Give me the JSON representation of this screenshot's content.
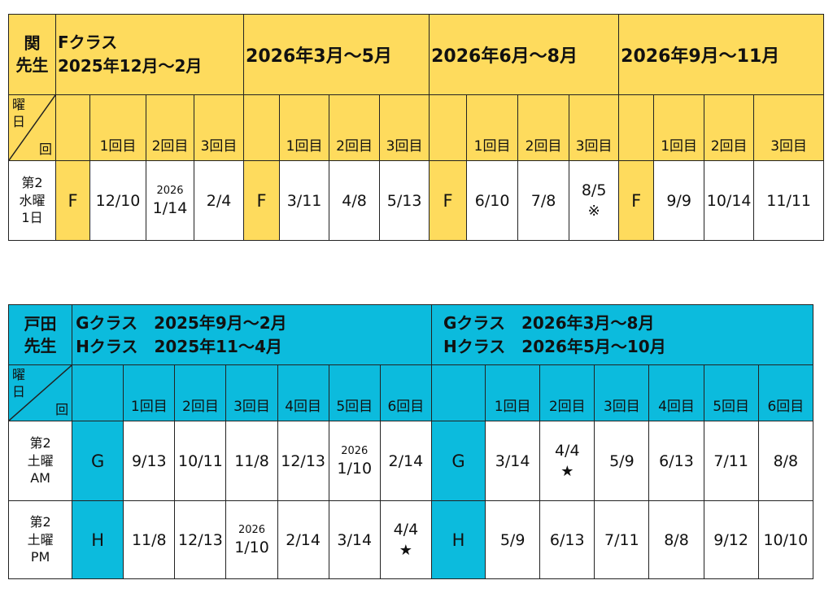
{
  "colors": {
    "table1_accent": "#fedb5d",
    "table2_accent": "#0cbbdd",
    "cell": "#ffffff"
  },
  "table1": {
    "teacher": [
      "関",
      "先生"
    ],
    "class_title": [
      "Fクラス",
      "2025年12月～2月"
    ],
    "periods": [
      "2026年3月～5月",
      "2026年6月～8月",
      "2026年9月～11月"
    ],
    "corner": {
      "top": [
        "曜",
        "日"
      ],
      "bottom": "回"
    },
    "sessions": [
      "1回目",
      "2回目",
      "3回目"
    ],
    "day": [
      "第2",
      "水曜",
      "1日"
    ],
    "class_code": "F",
    "blocks": [
      {
        "dates": [
          {
            "year": "",
            "date": "12/10",
            "mark": ""
          },
          {
            "year": "2026",
            "date": "1/14",
            "mark": ""
          },
          {
            "year": "",
            "date": "2/4",
            "mark": ""
          }
        ]
      },
      {
        "dates": [
          {
            "year": "",
            "date": "3/11",
            "mark": ""
          },
          {
            "year": "",
            "date": "4/8",
            "mark": ""
          },
          {
            "year": "",
            "date": "5/13",
            "mark": ""
          }
        ]
      },
      {
        "dates": [
          {
            "year": "",
            "date": "6/10",
            "mark": ""
          },
          {
            "year": "",
            "date": "7/8",
            "mark": ""
          },
          {
            "year": "",
            "date": "8/5",
            "mark": "※"
          }
        ]
      },
      {
        "dates": [
          {
            "year": "",
            "date": "9/9",
            "mark": ""
          },
          {
            "year": "",
            "date": "10/14",
            "mark": ""
          },
          {
            "year": "",
            "date": "11/11",
            "mark": ""
          }
        ]
      }
    ]
  },
  "table2": {
    "teacher": [
      "戸田",
      "先生"
    ],
    "left_title": [
      "Gクラス　2025年9月～2月",
      "Hクラス　2025年11～4月"
    ],
    "right_title": [
      "Gクラス　2026年3月～8月",
      "Hクラス　2026年5月～10月"
    ],
    "corner": {
      "top": [
        "曜",
        "日"
      ],
      "bottom": "回"
    },
    "sessions": [
      "1回目",
      "2回目",
      "3回目",
      "4回目",
      "5回目",
      "6回目"
    ],
    "rows": [
      {
        "day": [
          "第2",
          "土曜",
          "AM"
        ],
        "class_code": "G",
        "left": [
          {
            "year": "",
            "date": "9/13",
            "mark": ""
          },
          {
            "year": "",
            "date": "10/11",
            "mark": ""
          },
          {
            "year": "",
            "date": "11/8",
            "mark": ""
          },
          {
            "year": "",
            "date": "12/13",
            "mark": ""
          },
          {
            "year": "2026",
            "date": "1/10",
            "mark": ""
          },
          {
            "year": "",
            "date": "2/14",
            "mark": ""
          }
        ],
        "right": [
          {
            "year": "",
            "date": "3/14",
            "mark": ""
          },
          {
            "year": "",
            "date": "4/4",
            "mark": "★"
          },
          {
            "year": "",
            "date": "5/9",
            "mark": ""
          },
          {
            "year": "",
            "date": "6/13",
            "mark": ""
          },
          {
            "year": "",
            "date": "7/11",
            "mark": ""
          },
          {
            "year": "",
            "date": "8/8",
            "mark": ""
          }
        ]
      },
      {
        "day": [
          "第2",
          "土曜",
          "PM"
        ],
        "class_code": "H",
        "left": [
          {
            "year": "",
            "date": "11/8",
            "mark": ""
          },
          {
            "year": "",
            "date": "12/13",
            "mark": ""
          },
          {
            "year": "2026",
            "date": "1/10",
            "mark": ""
          },
          {
            "year": "",
            "date": "2/14",
            "mark": ""
          },
          {
            "year": "",
            "date": "3/14",
            "mark": ""
          },
          {
            "year": "",
            "date": "4/4",
            "mark": "★"
          }
        ],
        "right": [
          {
            "year": "",
            "date": "5/9",
            "mark": ""
          },
          {
            "year": "",
            "date": "6/13",
            "mark": ""
          },
          {
            "year": "",
            "date": "7/11",
            "mark": ""
          },
          {
            "year": "",
            "date": "8/8",
            "mark": ""
          },
          {
            "year": "",
            "date": "9/12",
            "mark": ""
          },
          {
            "year": "",
            "date": "10/10",
            "mark": ""
          }
        ]
      }
    ]
  }
}
